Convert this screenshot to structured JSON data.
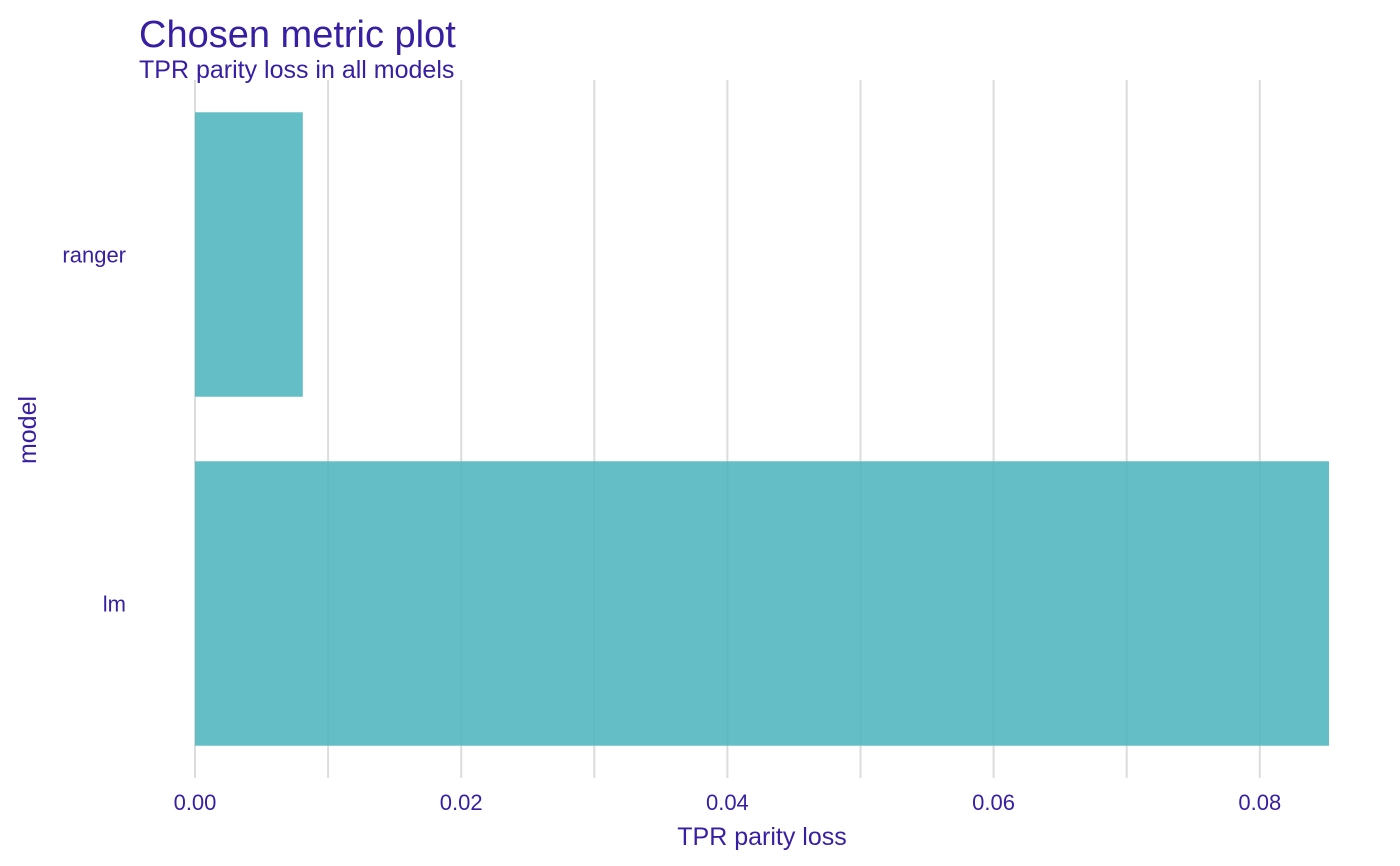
{
  "chart_data": {
    "type": "bar",
    "orientation": "horizontal",
    "title": "Chosen metric plot",
    "subtitle": "TPR parity loss in all models",
    "xlabel": "TPR parity loss",
    "ylabel": "model",
    "categories": [
      "ranger",
      "lm"
    ],
    "values": [
      0.0081,
      0.0852
    ],
    "xlim": [
      0,
      0.0852
    ],
    "x_ticks": [
      0.0,
      0.02,
      0.04,
      0.06,
      0.08
    ],
    "x_tick_labels": [
      "0.00",
      "0.02",
      "0.04",
      "0.06",
      "0.08"
    ],
    "x_minor_gridlines": [
      0.01,
      0.03,
      0.05,
      0.07
    ],
    "grid": "vertical",
    "legend": "none"
  },
  "colors": {
    "text": "#371ea3",
    "bar": "#4cb4bc",
    "grid": "#dcdcdc",
    "background": "#ffffff"
  }
}
